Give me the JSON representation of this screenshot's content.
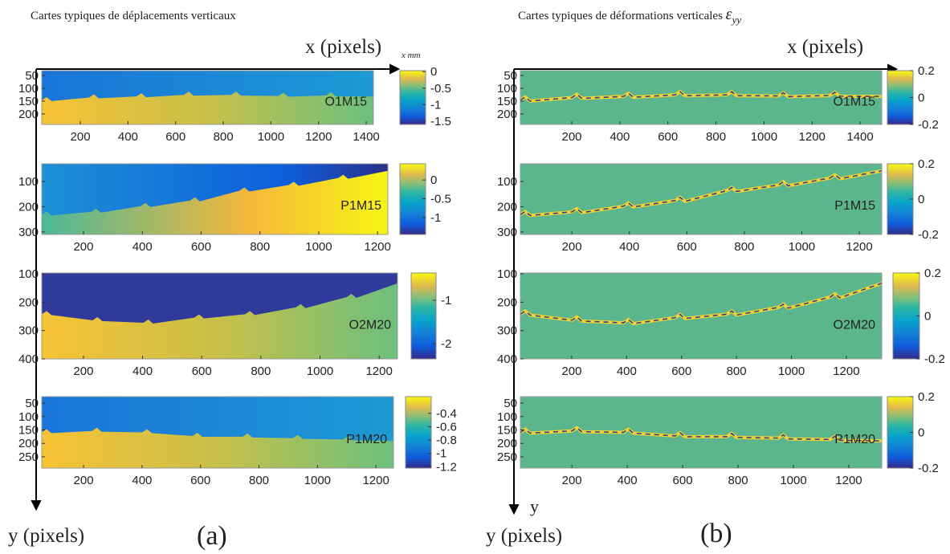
{
  "figure": {
    "title_left": "Cartes typiques de déplacements verticaux",
    "title_right": "Cartes typiques de déformations verticales",
    "title_right_symbol": "ε",
    "title_right_sub": "yy",
    "x_label_left": "x (pixels)",
    "x_label_right": "x (pixels)",
    "y_label_left": "y (pixels)",
    "y_label_right": "y (pixels)",
    "y_small": "y",
    "colorbar_unit": "x mm",
    "panel_a": "(a)",
    "panel_b": "(b)"
  },
  "chart_data": [
    {
      "type": "heatmap",
      "annotation": "O1M15",
      "xlim": [
        38,
        1430
      ],
      "xticks": [
        200,
        400,
        600,
        800,
        1000,
        1200,
        1400
      ],
      "ylim": [
        31,
        241
      ],
      "yticks": [
        50,
        100,
        150,
        200
      ],
      "clim": [
        -1.6,
        0.03
      ],
      "cticks": [
        0,
        -0.5,
        -1,
        -1.5
      ]
    },
    {
      "type": "heatmap",
      "annotation": "P1M15",
      "xlim": [
        58,
        1235
      ],
      "xticks": [
        200,
        400,
        600,
        800,
        1000,
        1200
      ],
      "ylim": [
        30,
        310
      ],
      "yticks": [
        100,
        200,
        300
      ],
      "clim": [
        -1.45,
        0.43
      ],
      "cticks": [
        0,
        -0.5,
        -1
      ]
    },
    {
      "type": "heatmap",
      "annotation": "O2M20",
      "xlim": [
        59,
        1262
      ],
      "xticks": [
        200,
        400,
        600,
        800,
        1000,
        1200
      ],
      "ylim": [
        97,
        400
      ],
      "yticks": [
        100,
        200,
        300,
        400
      ],
      "clim": [
        -2.35,
        -0.37
      ],
      "cticks": [
        -1,
        -2
      ]
    },
    {
      "type": "heatmap",
      "annotation": "P1M20",
      "xlim": [
        57,
        1260
      ],
      "xticks": [
        200,
        400,
        600,
        800,
        1000,
        1200
      ],
      "ylim": [
        26,
        292
      ],
      "yticks": [
        50,
        100,
        150,
        200,
        250
      ],
      "clim": [
        -1.22,
        -0.15
      ],
      "cticks": [
        -0.4,
        -0.6,
        -0.8,
        -1,
        -1.2
      ]
    },
    {
      "type": "heatmap",
      "annotation": "O1M15",
      "xlim": [
        -14,
        1490
      ],
      "xticks": [
        200,
        400,
        600,
        800,
        1000,
        1200,
        1400
      ],
      "ylim": [
        31,
        241
      ],
      "yticks": [
        50,
        100,
        150,
        200
      ],
      "clim": [
        -0.2,
        0.2
      ],
      "cticks": [
        0.2,
        0,
        -0.2
      ]
    },
    {
      "type": "heatmap",
      "annotation": "P1M15",
      "xlim": [
        21,
        1278
      ],
      "xticks": [
        200,
        400,
        600,
        800,
        1000,
        1200
      ],
      "ylim": [
        30,
        310
      ],
      "yticks": [
        100,
        200,
        300
      ],
      "clim": [
        -0.2,
        0.2
      ],
      "cticks": [
        0.2,
        0,
        -0.2
      ]
    },
    {
      "type": "heatmap",
      "annotation": "O2M20",
      "xlim": [
        13,
        1329
      ],
      "xticks": [
        200,
        400,
        600,
        800,
        1000,
        1200
      ],
      "ylim": [
        97,
        400
      ],
      "yticks": [
        100,
        200,
        300,
        400
      ],
      "clim": [
        -0.2,
        0.2
      ],
      "cticks": [
        0.2,
        0,
        -0.2
      ]
    },
    {
      "type": "heatmap",
      "annotation": "P1M20",
      "xlim": [
        14,
        1319
      ],
      "xticks": [
        200,
        400,
        600,
        800,
        1000,
        1200
      ],
      "ylim": [
        26,
        292
      ],
      "yticks": [
        50,
        100,
        150,
        200,
        250
      ],
      "clim": [
        -0.2,
        0.2
      ],
      "cticks": [
        0.2,
        0,
        -0.2
      ]
    }
  ]
}
